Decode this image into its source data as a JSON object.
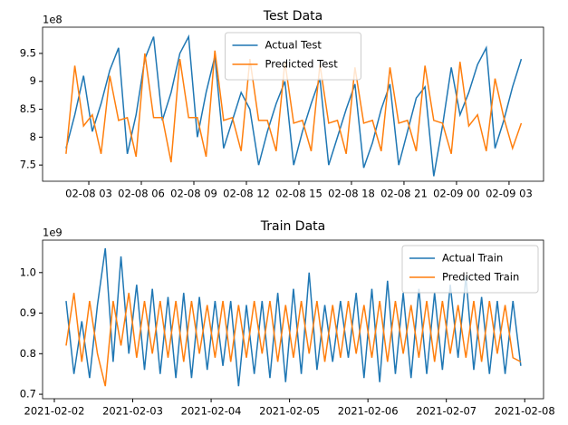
{
  "chart_data": [
    {
      "type": "line",
      "title": "Test Data",
      "y_offset_label": "1e8",
      "legend": "upper center",
      "x": [
        1.7,
        2.2,
        2.7,
        3.2,
        3.7,
        4.2,
        4.7,
        5.2,
        5.7,
        6.2,
        6.7,
        7.2,
        7.7,
        8.2,
        8.7,
        9.2,
        9.7,
        10.2,
        10.7,
        11.2,
        11.7,
        12.2,
        12.7,
        13.2,
        13.7,
        14.2,
        14.7,
        15.2,
        15.7,
        16.2,
        16.7,
        17.2,
        17.7,
        18.2,
        18.7,
        19.2,
        19.7,
        20.2,
        20.7,
        21.2,
        21.7,
        22.2,
        22.7,
        23.2,
        23.7,
        24.2,
        24.7,
        25.2,
        25.7,
        26.2,
        26.7,
        27.2,
        27.7
      ],
      "series": [
        {
          "name": "Actual Test",
          "color": "#1f77b4",
          "values": [
            7.8,
            8.4,
            9.1,
            8.1,
            8.6,
            9.2,
            9.6,
            7.7,
            8.4,
            9.4,
            9.8,
            8.3,
            8.8,
            9.5,
            9.8,
            8.0,
            8.8,
            9.45,
            7.8,
            8.3,
            8.8,
            8.5,
            7.5,
            8.1,
            8.6,
            9.0,
            7.5,
            8.1,
            8.6,
            9.05,
            7.5,
            8.0,
            8.5,
            8.95,
            7.45,
            7.9,
            8.5,
            8.95,
            7.5,
            8.1,
            8.7,
            8.9,
            7.3,
            8.2,
            9.25,
            8.4,
            8.8,
            9.3,
            9.6,
            7.8,
            8.3,
            8.9,
            9.4
          ]
        },
        {
          "name": "Predicted Test",
          "color": "#ff7f0e",
          "values": [
            7.7,
            9.28,
            8.2,
            8.4,
            7.7,
            9.1,
            8.3,
            8.35,
            7.65,
            9.5,
            8.35,
            8.35,
            7.55,
            9.4,
            8.35,
            8.35,
            7.65,
            9.55,
            8.3,
            8.35,
            7.75,
            9.4,
            8.3,
            8.3,
            7.75,
            9.35,
            8.25,
            8.3,
            7.75,
            9.3,
            8.25,
            8.3,
            7.7,
            9.25,
            8.25,
            8.3,
            7.75,
            9.25,
            8.25,
            8.3,
            7.75,
            9.28,
            8.3,
            8.25,
            7.7,
            9.35,
            8.2,
            8.4,
            7.75,
            9.05,
            8.35,
            7.8,
            8.25
          ]
        }
      ],
      "xlim": [
        0.36,
        28.97
      ],
      "ylim": [
        7.21,
        9.97
      ],
      "xticks": [
        {
          "value": 3,
          "label": "02-08 03"
        },
        {
          "value": 6,
          "label": "02-08 06"
        },
        {
          "value": 9,
          "label": "02-08 09"
        },
        {
          "value": 12,
          "label": "02-08 12"
        },
        {
          "value": 15,
          "label": "02-08 15"
        },
        {
          "value": 18,
          "label": "02-08 18"
        },
        {
          "value": 21,
          "label": "02-08 21"
        },
        {
          "value": 24,
          "label": "02-09 00"
        },
        {
          "value": 27,
          "label": "02-09 03"
        }
      ],
      "yticks": [
        7.5,
        8.0,
        8.5,
        9.0,
        9.5
      ]
    },
    {
      "type": "line",
      "title": "Train Data",
      "y_offset_label": "1e9",
      "legend": "upper right",
      "x": [
        0.15,
        0.25,
        0.35,
        0.45,
        0.55,
        0.65,
        0.75,
        0.85,
        0.95,
        1.05,
        1.15,
        1.25,
        1.35,
        1.45,
        1.55,
        1.65,
        1.75,
        1.85,
        1.95,
        2.05,
        2.15,
        2.25,
        2.35,
        2.45,
        2.55,
        2.65,
        2.75,
        2.85,
        2.95,
        3.05,
        3.15,
        3.25,
        3.35,
        3.45,
        3.55,
        3.65,
        3.75,
        3.85,
        3.95,
        4.05,
        4.15,
        4.25,
        4.35,
        4.45,
        4.55,
        4.65,
        4.75,
        4.85,
        4.95,
        5.05,
        5.15,
        5.25,
        5.35,
        5.45,
        5.55,
        5.65,
        5.75,
        5.85,
        5.95
      ],
      "series": [
        {
          "name": "Actual Train",
          "color": "#1f77b4",
          "values": [
            0.93,
            0.75,
            0.88,
            0.74,
            0.92,
            1.06,
            0.78,
            1.04,
            0.8,
            0.97,
            0.76,
            0.96,
            0.75,
            0.94,
            0.74,
            0.95,
            0.74,
            0.94,
            0.76,
            0.93,
            0.77,
            0.93,
            0.72,
            0.92,
            0.75,
            0.93,
            0.74,
            0.95,
            0.73,
            0.96,
            0.75,
            1.0,
            0.76,
            0.92,
            0.78,
            0.93,
            0.79,
            0.95,
            0.74,
            0.96,
            0.73,
            0.98,
            0.75,
            0.95,
            0.74,
            0.96,
            0.75,
            0.95,
            0.76,
            0.97,
            0.79,
            0.99,
            0.76,
            0.94,
            0.75,
            0.93,
            0.75,
            0.93,
            0.77
          ]
        },
        {
          "name": "Predicted Train",
          "color": "#ff7f0e",
          "values": [
            0.82,
            0.95,
            0.78,
            0.93,
            0.8,
            0.72,
            0.93,
            0.82,
            0.95,
            0.79,
            0.93,
            0.8,
            0.93,
            0.79,
            0.93,
            0.78,
            0.93,
            0.8,
            0.92,
            0.79,
            0.93,
            0.78,
            0.92,
            0.79,
            0.93,
            0.8,
            0.93,
            0.78,
            0.92,
            0.79,
            0.93,
            0.8,
            0.93,
            0.78,
            0.92,
            0.79,
            0.93,
            0.8,
            0.92,
            0.79,
            0.93,
            0.78,
            0.93,
            0.8,
            0.92,
            0.79,
            0.93,
            0.78,
            0.93,
            0.8,
            0.92,
            0.79,
            0.93,
            0.78,
            0.93,
            0.8,
            0.92,
            0.79,
            0.78
          ]
        }
      ],
      "xlim": [
        -0.15,
        6.24
      ],
      "ylim": [
        0.689,
        1.08
      ],
      "xticks": [
        {
          "value": 0,
          "label": "2021-02-02"
        },
        {
          "value": 1,
          "label": "2021-02-03"
        },
        {
          "value": 2,
          "label": "2021-02-04"
        },
        {
          "value": 3,
          "label": "2021-02-05"
        },
        {
          "value": 4,
          "label": "2021-02-06"
        },
        {
          "value": 5,
          "label": "2021-02-07"
        },
        {
          "value": 6,
          "label": "2021-02-08"
        }
      ],
      "yticks": [
        0.7,
        0.8,
        0.9,
        {
          "value": 1,
          "label": "1.0"
        }
      ]
    }
  ]
}
